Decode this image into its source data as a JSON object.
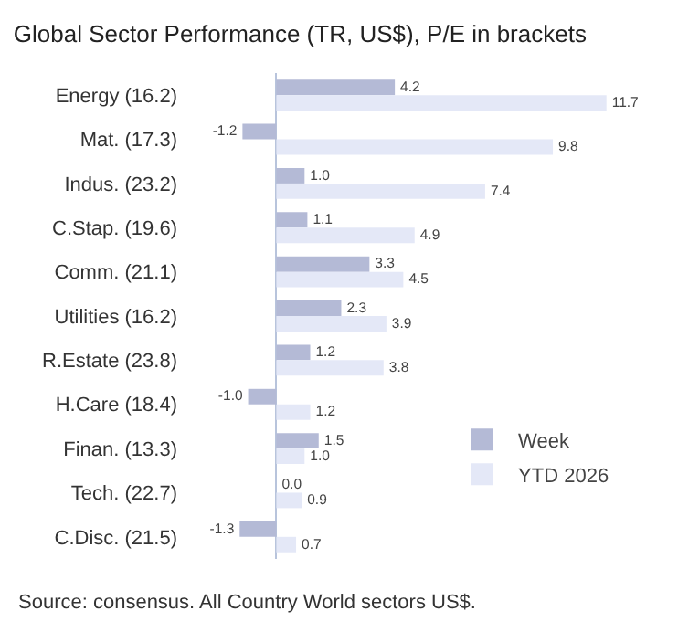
{
  "chart_data": {
    "type": "bar",
    "orientation": "horizontal",
    "title": "Global Sector Performance (TR, US$), P/E in brackets",
    "categories": [
      "Energy (16.2)",
      "Mat. (17.3)",
      "Indus. (23.2)",
      "C.Stap. (19.6)",
      "Comm. (21.1)",
      "Utilities (16.2)",
      "R.Estate (23.8)",
      "H.Care (18.4)",
      "Finan. (13.3)",
      "Tech. (22.7)",
      "C.Disc. (21.5)"
    ],
    "series": [
      {
        "name": "Week",
        "color": "#b4bad6",
        "values": [
          4.2,
          -1.2,
          1.0,
          1.1,
          3.3,
          2.3,
          1.2,
          -1.0,
          1.5,
          0.0,
          -1.3
        ],
        "value_labels": [
          "4.2",
          "-1.2",
          "1.0",
          "1.1",
          "3.3",
          "2.3",
          "1.2",
          "-1.0",
          "1.5",
          "0.0",
          "-1.3"
        ]
      },
      {
        "name": "YTD 2026",
        "color": "#e4e8f7",
        "values": [
          11.7,
          9.8,
          7.4,
          4.9,
          4.5,
          3.9,
          3.8,
          1.2,
          1.0,
          0.9,
          0.7
        ],
        "value_labels": [
          "11.7",
          "9.8",
          "7.4",
          "4.9",
          "4.5",
          "3.9",
          "3.8",
          "1.2",
          "1.0",
          "0.9",
          "0.7"
        ]
      }
    ],
    "legend": "bottom right",
    "annotations": [
      "Source: consensus. All Country World sectors US$."
    ]
  }
}
